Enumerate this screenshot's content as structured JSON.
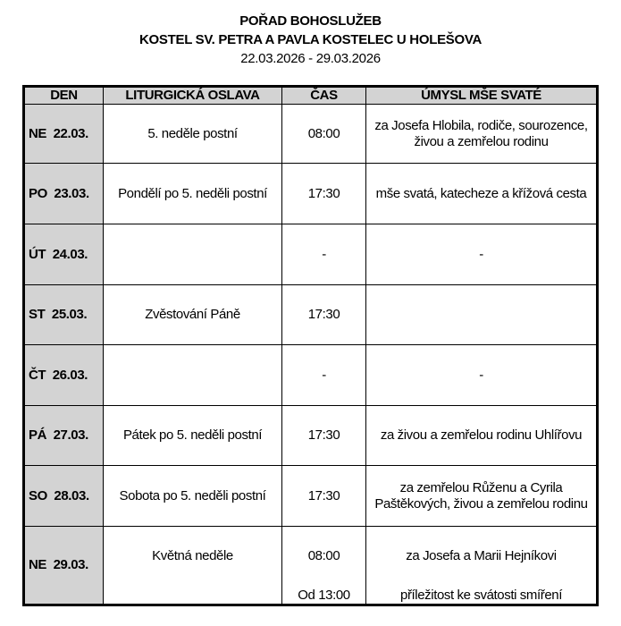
{
  "header": {
    "title": "POŘAD BOHOSLUŽEB",
    "church": "KOSTEL SV. PETRA A PAVLA KOSTELEC U HOLEŠOVA",
    "date_range": "22.03.2026 - 29.03.2026"
  },
  "table": {
    "columns": [
      "DEN",
      "LITURGICKÁ OSLAVA",
      "ČAS",
      "ÚMYSL MŠE SVATÉ"
    ],
    "rows": [
      {
        "day": "NE  22.03.",
        "celebration": "5. neděle postní",
        "time": "08:00",
        "intention": "za Josefa Hlobila, rodiče, sourozence, živou a zemřelou rodinu"
      },
      {
        "day": "PO  23.03.",
        "celebration": "Pondělí po 5. neděli postní",
        "time": "17:30",
        "intention": "mše svatá, katecheze a křížová cesta"
      },
      {
        "day": "ÚT  24.03.",
        "celebration": "",
        "time": "-",
        "intention": "-"
      },
      {
        "day": "ST  25.03.",
        "celebration": "Zvěstování Páně",
        "time": "17:30",
        "intention": ""
      },
      {
        "day": "ČT  26.03.",
        "celebration": "",
        "time": "-",
        "intention": "-"
      },
      {
        "day": "PÁ  27.03.",
        "celebration": "Pátek po 5. neděli postní",
        "time": "17:30",
        "intention": "za živou a zemřelou rodinu Uhlířovu"
      },
      {
        "day": "SO  28.03.",
        "celebration": "Sobota po 5. neděli postní",
        "time": "17:30",
        "intention": "za zemřelou Růženu a Cyrila Paštěkových, živou a zemřelou rodinu"
      }
    ],
    "last_row": {
      "day": "NE  29.03.",
      "celebration": "Květná neděle",
      "time_1": "08:00",
      "intention_1": "za Josefa a Marii Hejníkovi",
      "time_2": "Od 13:00",
      "intention_2": "příležitost ke svátosti smíření"
    }
  }
}
